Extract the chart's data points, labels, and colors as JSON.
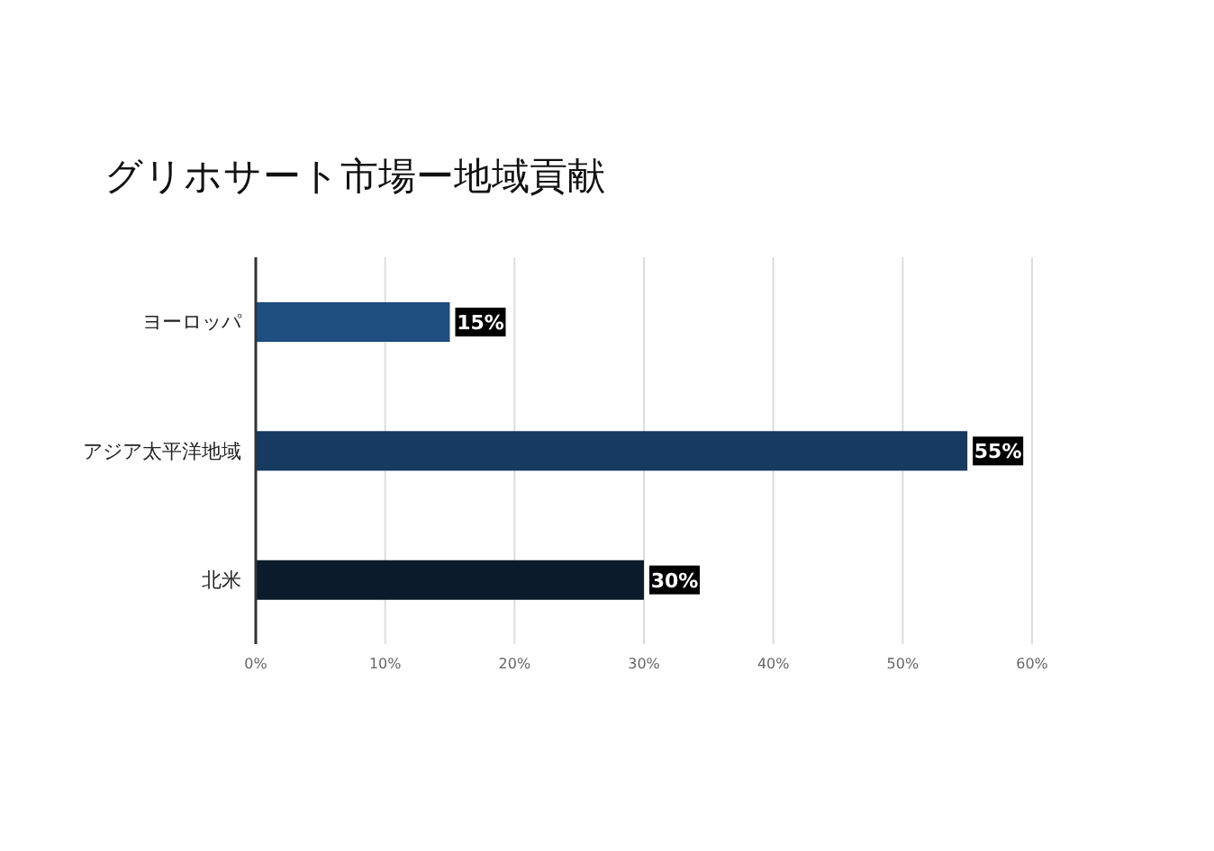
{
  "chart_data": {
    "type": "bar",
    "orientation": "horizontal",
    "title": "グリホサート市場ー地域貢献",
    "categories": [
      "ヨーロッパ",
      "アジア太平洋地域",
      "北米"
    ],
    "values": [
      15,
      55,
      30
    ],
    "colors": [
      "#1f4e80",
      "#163a60",
      "#0c1b2c"
    ],
    "value_labels": [
      "15%",
      "55%",
      "30%"
    ],
    "xlim": [
      0,
      60
    ],
    "xticks": [
      {
        "value": 0,
        "label": "0%"
      },
      {
        "value": 10,
        "label": "10%"
      },
      {
        "value": 20,
        "label": "20%"
      },
      {
        "value": 30,
        "label": "30%"
      },
      {
        "value": 40,
        "label": "40%"
      },
      {
        "value": 50,
        "label": "50%"
      },
      {
        "value": 60,
        "label": "60%"
      }
    ],
    "grid": "x",
    "legend": false
  }
}
